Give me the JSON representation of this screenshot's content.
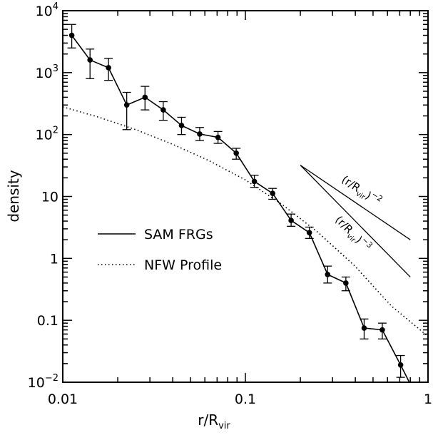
{
  "chart_data": {
    "type": "line",
    "title": "",
    "xlabel": "r/R",
    "xlabel_sub": "vir",
    "ylabel": "density",
    "xscale": "log",
    "yscale": "log",
    "xlim": [
      0.01,
      1
    ],
    "ylim": [
      0.01,
      10000
    ],
    "grid": false,
    "legend_placement": "center-left",
    "x_tick_labels": [
      {
        "value": 0.01,
        "label": "0.01"
      },
      {
        "value": 0.1,
        "label": "0.1"
      },
      {
        "value": 1,
        "label": "1"
      }
    ],
    "y_tick_labels": [
      {
        "value": 0.01,
        "base": "10",
        "exp": "−2"
      },
      {
        "value": 0.1,
        "base": "0.1",
        "exp": ""
      },
      {
        "value": 1,
        "base": "1",
        "exp": ""
      },
      {
        "value": 10,
        "base": "10",
        "exp": ""
      },
      {
        "value": 100,
        "base": "10",
        "exp": "2"
      },
      {
        "value": 1000,
        "base": "10",
        "exp": "3"
      },
      {
        "value": 10000,
        "base": "10",
        "exp": "4"
      }
    ],
    "series": [
      {
        "name": "SAM FRGs",
        "style": "solid-with-markers",
        "color": "#000000",
        "points": [
          {
            "x": 0.0112,
            "y": 4000,
            "ylo": 2500,
            "yhi": 6000
          },
          {
            "x": 0.0141,
            "y": 1600,
            "ylo": 800,
            "yhi": 2400
          },
          {
            "x": 0.0178,
            "y": 1200,
            "ylo": 750,
            "yhi": 1700
          },
          {
            "x": 0.0224,
            "y": 300,
            "ylo": 120,
            "yhi": 480
          },
          {
            "x": 0.0282,
            "y": 400,
            "ylo": 250,
            "yhi": 600
          },
          {
            "x": 0.0355,
            "y": 250,
            "ylo": 170,
            "yhi": 340
          },
          {
            "x": 0.0447,
            "y": 140,
            "ylo": 100,
            "yhi": 190
          },
          {
            "x": 0.0562,
            "y": 102,
            "ylo": 80,
            "yhi": 130
          },
          {
            "x": 0.0708,
            "y": 90,
            "ylo": 72,
            "yhi": 112
          },
          {
            "x": 0.0891,
            "y": 50,
            "ylo": 40,
            "yhi": 60
          },
          {
            "x": 0.112,
            "y": 17.5,
            "ylo": 14,
            "yhi": 22
          },
          {
            "x": 0.141,
            "y": 11.2,
            "ylo": 9,
            "yhi": 13.5
          },
          {
            "x": 0.178,
            "y": 4.1,
            "ylo": 3.3,
            "yhi": 5.2
          },
          {
            "x": 0.224,
            "y": 2.6,
            "ylo": 2.1,
            "yhi": 3.2
          },
          {
            "x": 0.282,
            "y": 0.55,
            "ylo": 0.4,
            "yhi": 0.75
          },
          {
            "x": 0.355,
            "y": 0.4,
            "ylo": 0.3,
            "yhi": 0.5
          },
          {
            "x": 0.447,
            "y": 0.075,
            "ylo": 0.05,
            "yhi": 0.105
          },
          {
            "x": 0.562,
            "y": 0.07,
            "ylo": 0.05,
            "yhi": 0.09
          },
          {
            "x": 0.708,
            "y": 0.019,
            "ylo": 0.012,
            "yhi": 0.027
          },
          {
            "x": 0.79,
            "y": 0.01
          }
        ]
      },
      {
        "name": "NFW Profile",
        "style": "dotted",
        "color": "#000000",
        "points": [
          {
            "x": 0.01,
            "y": 280
          },
          {
            "x": 0.0158,
            "y": 190
          },
          {
            "x": 0.0251,
            "y": 120
          },
          {
            "x": 0.0398,
            "y": 70
          },
          {
            "x": 0.0631,
            "y": 38
          },
          {
            "x": 0.1,
            "y": 18.5
          },
          {
            "x": 0.158,
            "y": 7.5
          },
          {
            "x": 0.251,
            "y": 2.6
          },
          {
            "x": 0.398,
            "y": 0.75
          },
          {
            "x": 0.631,
            "y": 0.17
          },
          {
            "x": 1.0,
            "y": 0.055
          }
        ]
      }
    ],
    "reference_lines": [
      {
        "label_base": "(r/R",
        "label_sub": "vir",
        "label_close": ")",
        "label_exp": "−2",
        "points": [
          {
            "x": 0.2,
            "y": 32
          },
          {
            "x": 0.8,
            "y": 2
          }
        ]
      },
      {
        "label_base": "(r/R",
        "label_sub": "vir",
        "label_close": ")",
        "label_exp": "−3",
        "points": [
          {
            "x": 0.2,
            "y": 32
          },
          {
            "x": 0.8,
            "y": 0.5
          }
        ]
      }
    ]
  }
}
